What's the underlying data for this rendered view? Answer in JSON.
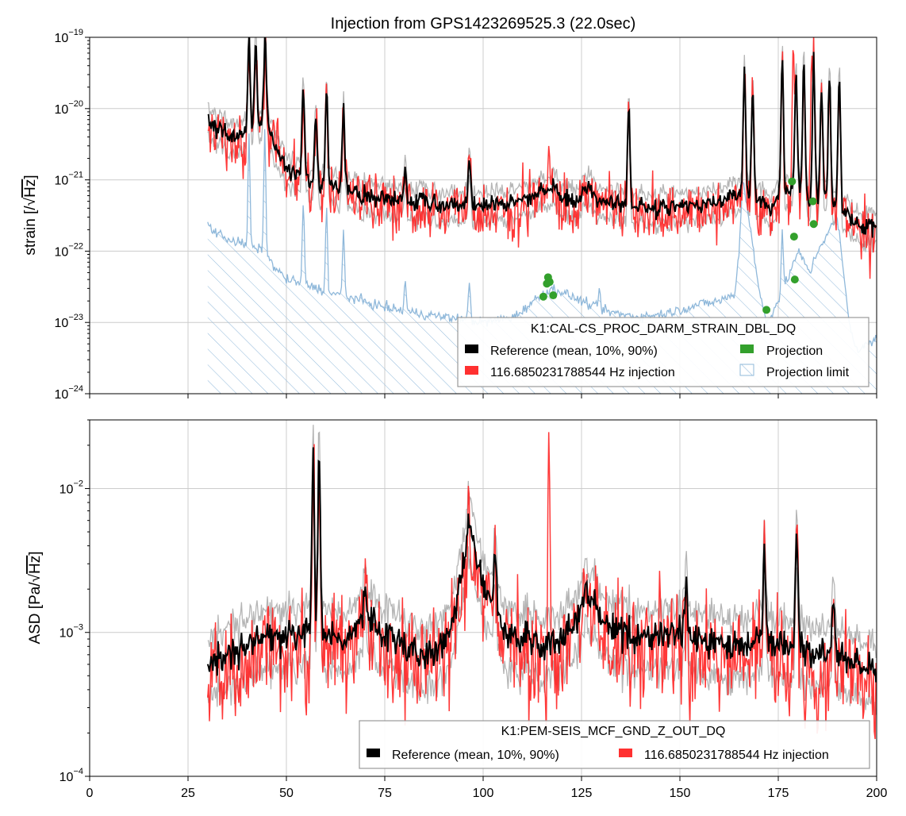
{
  "figure_title": "Injection from GPS1423269525.3 (22.0sec)",
  "colors": {
    "reference": "#000000",
    "reference_band": "#bfbfbf",
    "injection": "#ff2222",
    "projection": "#33a02c",
    "projection_limit": "#8fb8da",
    "grid": "#cccccc"
  },
  "chart_data": [
    {
      "type": "line",
      "title": "",
      "ylabel": "strain [/√Hz]",
      "ylabel_parts": {
        "prefix": "strain [/",
        "root": "√",
        "unit": "Hz",
        "suffix": "]"
      },
      "xlabel": "",
      "xlim": [
        0,
        200
      ],
      "ylim": [
        1e-24,
        1e-19
      ],
      "yscale": "log",
      "grid": true,
      "x_ticks": [
        "0",
        "25",
        "50",
        "75",
        "100",
        "125",
        "150",
        "175",
        "200"
      ],
      "x_tick_labels_visible": false,
      "y_ticks": [
        {
          "base": "10",
          "exp": "−24"
        },
        {
          "base": "10",
          "exp": "−23"
        },
        {
          "base": "10",
          "exp": "−22"
        },
        {
          "base": "10",
          "exp": "−21"
        },
        {
          "base": "10",
          "exp": "−20"
        },
        {
          "base": "10",
          "exp": "−19"
        }
      ],
      "legend": {
        "placement": "lower-right",
        "title": "K1:CAL-CS_PROC_DARM_STRAIN_DBL_DQ",
        "entries": [
          "Reference (mean, 10%, 90%)",
          "116.6850231788544 Hz injection",
          "Projection",
          "Projection limit"
        ]
      },
      "reference_profile": {
        "x": [
          30,
          33,
          36,
          38,
          40,
          42,
          44,
          46,
          48,
          50,
          53,
          56,
          60,
          65,
          70,
          75,
          80,
          85,
          90,
          95,
          100,
          105,
          110,
          115,
          118,
          120,
          123,
          127,
          130,
          135,
          140,
          145,
          150,
          155,
          160,
          163,
          166,
          170,
          173,
          176,
          180,
          183,
          186,
          190,
          195,
          200
        ],
        "y": [
          7e-21,
          5e-21,
          4e-21,
          4e-21,
          4.5e-21,
          5.5e-21,
          6e-21,
          5e-21,
          2.5e-21,
          1.5e-21,
          1.2e-21,
          9e-22,
          8e-22,
          7e-22,
          6e-22,
          5.5e-22,
          5e-22,
          4.8e-22,
          4.5e-22,
          4.5e-22,
          4.5e-22,
          4.6e-22,
          5e-22,
          7e-22,
          8e-22,
          6e-22,
          5e-22,
          8e-22,
          5e-22,
          4.5e-22,
          4.2e-22,
          4e-22,
          4e-22,
          4.5e-22,
          5e-22,
          6e-22,
          6e-22,
          5e-22,
          4e-22,
          6e-22,
          8e-22,
          5e-22,
          6e-22,
          4e-22,
          2.5e-22,
          2e-22
        ]
      },
      "reference_peaks": [
        {
          "x": 40.5,
          "y": 1e-19
        },
        {
          "x": 42.2,
          "y": 8e-20
        },
        {
          "x": 44.6,
          "y": 1e-19
        },
        {
          "x": 54.3,
          "y": 2e-20
        },
        {
          "x": 57.5,
          "y": 9e-21
        },
        {
          "x": 60.2,
          "y": 1.8e-20
        },
        {
          "x": 64.5,
          "y": 1e-20
        },
        {
          "x": 80.2,
          "y": 1.5e-21
        },
        {
          "x": 96.5,
          "y": 2e-21
        },
        {
          "x": 137.0,
          "y": 1e-20
        },
        {
          "x": 166.4,
          "y": 4e-20
        },
        {
          "x": 168.5,
          "y": 2e-20
        },
        {
          "x": 176.0,
          "y": 6e-20
        },
        {
          "x": 179.5,
          "y": 3e-20
        },
        {
          "x": 181.5,
          "y": 4.5e-20
        },
        {
          "x": 184.0,
          "y": 5e-20
        },
        {
          "x": 186.0,
          "y": 2e-20
        },
        {
          "x": 188.0,
          "y": 3e-20
        },
        {
          "x": 190.5,
          "y": 3e-20
        }
      ],
      "injection_extra_peaks": [
        {
          "x": 116.7,
          "y": 3e-21
        },
        {
          "x": 178.8,
          "y": 8e-20
        },
        {
          "x": 183.5,
          "y": 6e-20
        }
      ],
      "projection_limit_profile": {
        "x": [
          30,
          31,
          35,
          40,
          44,
          47,
          50,
          54,
          58,
          62,
          67,
          72,
          78,
          85,
          95,
          100,
          108,
          115,
          118,
          121,
          125,
          130,
          135,
          140,
          145,
          150,
          155,
          160,
          164,
          165,
          166,
          168,
          170,
          172,
          175,
          178,
          180,
          183,
          185,
          188,
          190,
          193,
          195,
          198,
          200
        ],
        "y": [
          2.5e-22,
          2e-22,
          1.5e-22,
          1.2e-22,
          1e-22,
          6e-23,
          4e-23,
          3.5e-23,
          3e-23,
          2.5e-23,
          2.2e-23,
          1.8e-23,
          1.5e-23,
          1.3e-23,
          1.1e-23,
          1e-23,
          1.2e-23,
          2.5e-23,
          3e-23,
          2.5e-23,
          2e-23,
          1.5e-23,
          1.3e-23,
          1.2e-23,
          1.3e-23,
          1.5e-23,
          1.8e-23,
          2e-23,
          2.5e-23,
          1e-22,
          1e-21,
          2e-22,
          3e-23,
          1e-23,
          2e-23,
          5e-23,
          1e-22,
          5e-23,
          1e-22,
          2e-22,
          3e-22,
          1e-23,
          4e-24,
          5e-24,
          6e-24
        ]
      },
      "projection_limit_peaks": [
        {
          "x": 40.5,
          "y": 4e-21
        },
        {
          "x": 44.5,
          "y": 6e-21
        },
        {
          "x": 54.3,
          "y": 5e-22
        },
        {
          "x": 60.2,
          "y": 4e-22
        },
        {
          "x": 64.5,
          "y": 2e-22
        },
        {
          "x": 80.2,
          "y": 4e-23
        },
        {
          "x": 96.5,
          "y": 4e-23
        },
        {
          "x": 129.5,
          "y": 3e-23
        },
        {
          "x": 176.0,
          "y": 2e-22
        }
      ],
      "projection_points": {
        "x": [
          115.3,
          116.2,
          116.5,
          116.7,
          116.9,
          117.8,
          172.0,
          178.5,
          179.0,
          179.2,
          183.8,
          184.0
        ],
        "y": [
          2.3e-23,
          3.5e-23,
          4.3e-23,
          3.8e-23,
          3.7e-23,
          2.4e-23,
          1.5e-23,
          9.5e-22,
          1.6e-22,
          4e-23,
          5e-22,
          2.4e-22
        ]
      }
    },
    {
      "type": "line",
      "title": "",
      "ylabel": "ASD [Pa/√Hz]",
      "ylabel_parts": {
        "prefix": "ASD [Pa/",
        "root": "√",
        "unit": "Hz",
        "suffix": "]"
      },
      "xlabel": "",
      "xlim": [
        0,
        200
      ],
      "ylim": [
        0.0001,
        0.03
      ],
      "yscale": "log",
      "grid": true,
      "x_ticks": [
        "0",
        "25",
        "50",
        "75",
        "100",
        "125",
        "150",
        "175",
        "200"
      ],
      "x_tick_labels_visible": true,
      "y_ticks": [
        {
          "base": "10",
          "exp": "−4"
        },
        {
          "base": "10",
          "exp": "−3"
        },
        {
          "base": "10",
          "exp": "−2"
        }
      ],
      "legend": {
        "placement": "lower-right",
        "title": "K1:PEM-SEIS_MCF_GND_Z_OUT_DQ",
        "entries": [
          "Reference (mean, 10%, 90%)",
          "116.6850231788544 Hz injection"
        ]
      },
      "reference_profile": {
        "x": [
          30,
          35,
          40,
          45,
          50,
          55,
          60,
          65,
          70,
          75,
          80,
          85,
          90,
          93,
          95,
          97,
          100,
          103,
          106,
          110,
          115,
          120,
          125,
          127,
          130,
          135,
          140,
          145,
          150,
          155,
          160,
          165,
          170,
          175,
          180,
          185,
          190,
          195,
          200
        ],
        "y": [
          0.0006,
          0.0007,
          0.0008,
          0.001,
          0.0009,
          0.001,
          0.001,
          0.0009,
          0.0013,
          0.001,
          0.0008,
          0.0007,
          0.0008,
          0.0015,
          0.003,
          0.005,
          0.002,
          0.0015,
          0.001,
          0.0009,
          0.0008,
          0.0009,
          0.0015,
          0.002,
          0.0012,
          0.001,
          0.0009,
          0.001,
          0.001,
          0.0009,
          0.0008,
          0.0008,
          0.0009,
          0.0008,
          0.0008,
          0.0007,
          0.0007,
          0.0006,
          0.00055
        ]
      },
      "reference_peaks": [
        {
          "x": 56.8,
          "y": 0.02
        },
        {
          "x": 58.3,
          "y": 0.017
        },
        {
          "x": 70.0,
          "y": 0.002
        },
        {
          "x": 96.3,
          "y": 0.0065
        },
        {
          "x": 103.0,
          "y": 0.004
        },
        {
          "x": 126.0,
          "y": 0.0022
        },
        {
          "x": 151.5,
          "y": 0.002
        },
        {
          "x": 171.5,
          "y": 0.004
        },
        {
          "x": 179.7,
          "y": 0.005
        },
        {
          "x": 189.0,
          "y": 0.0017
        }
      ],
      "injection_extra_peaks": [
        {
          "x": 116.7,
          "y": 0.025
        }
      ],
      "injection_dips": [
        {
          "x": 37.0,
          "y": 0.00025
        },
        {
          "x": 55.0,
          "y": 0.00025
        },
        {
          "x": 77.0,
          "y": 0.0003
        },
        {
          "x": 84.0,
          "y": 0.0003
        },
        {
          "x": 116.0,
          "y": 0.0002
        },
        {
          "x": 152.5,
          "y": 0.00022
        },
        {
          "x": 160.0,
          "y": 0.00028
        },
        {
          "x": 185.0,
          "y": 0.00018
        },
        {
          "x": 199.5,
          "y": 0.00018
        }
      ]
    }
  ]
}
